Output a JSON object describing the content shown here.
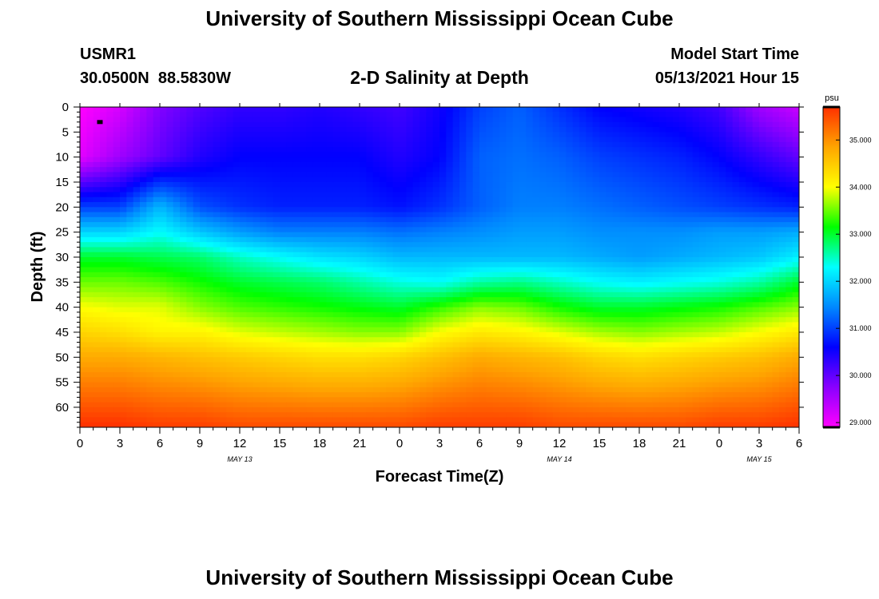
{
  "page": {
    "title_top": "University of Southern Mississippi Ocean Cube",
    "title_bottom": "University of Southern Mississippi Ocean Cube",
    "station_id": "USMR1",
    "station_coords": "30.0500N  88.5830W",
    "plot_title": "2-D Salinity at Depth",
    "model_start_label": "Model Start Time",
    "model_start_value": "05/13/2021 Hour 15"
  },
  "chart_data": {
    "type": "heatmap",
    "title": "2-D Salinity at Depth",
    "xlabel": "Forecast Time(Z)",
    "ylabel": "Depth (ft)",
    "x_tick_labels": [
      "0",
      "3",
      "6",
      "9",
      "12",
      "15",
      "18",
      "21",
      "0",
      "3",
      "6",
      "9",
      "12",
      "15",
      "18",
      "21",
      "0",
      "3",
      "6"
    ],
    "x_date_labels": [
      {
        "label": "MAY 13",
        "index": 4
      },
      {
        "label": "MAY 14",
        "index": 12
      },
      {
        "label": "MAY 15",
        "index": 17
      }
    ],
    "x_range_hours": [
      0,
      54
    ],
    "y_tick_values": [
      0,
      5,
      10,
      15,
      20,
      25,
      30,
      35,
      40,
      45,
      50,
      55,
      60
    ],
    "y_range": [
      0,
      64
    ],
    "y_reversed": true,
    "colorbar": {
      "unit": "psu",
      "min": 28.9,
      "max": 35.7,
      "tick_values": [
        29.0,
        30.0,
        31.0,
        32.0,
        33.0,
        34.0,
        35.0
      ],
      "tick_labels": [
        "29.000",
        "30.000",
        "31.000",
        "32.000",
        "33.000",
        "34.000",
        "35.000"
      ],
      "colors": [
        "#ff00ff",
        "#8a00ff",
        "#0000ff",
        "#0088ff",
        "#00ffff",
        "#00ff00",
        "#ffff00",
        "#ffa500",
        "#ff3000"
      ]
    },
    "grid_hours": [
      0,
      3,
      6,
      9,
      12,
      15,
      18,
      21,
      24,
      27,
      30,
      33,
      36,
      39,
      42,
      45,
      48,
      51,
      54
    ],
    "grid_depths": [
      0,
      10,
      20,
      25,
      30,
      35,
      40,
      45,
      50,
      64
    ],
    "salinity": [
      [
        28.9,
        29.2,
        29.8,
        30.1,
        30.3,
        30.3,
        30.4,
        30.3,
        30.2,
        30.5,
        31.0,
        31.2,
        30.9,
        30.6,
        30.5,
        30.4,
        30.2,
        29.6,
        29.3
      ],
      [
        29.1,
        29.6,
        30.0,
        30.4,
        30.6,
        30.6,
        30.6,
        30.6,
        30.4,
        30.6,
        31.2,
        31.3,
        31.2,
        31.0,
        30.9,
        30.8,
        30.6,
        30.3,
        30.0
      ],
      [
        31.0,
        31.0,
        31.8,
        31.1,
        30.9,
        30.8,
        30.8,
        30.8,
        30.7,
        30.9,
        31.2,
        31.4,
        31.4,
        31.3,
        31.2,
        31.1,
        31.0,
        30.9,
        30.8
      ],
      [
        32.0,
        32.0,
        32.3,
        31.9,
        31.6,
        31.4,
        31.4,
        31.4,
        31.3,
        31.4,
        31.5,
        31.6,
        31.6,
        31.5,
        31.5,
        31.5,
        31.6,
        31.6,
        31.7
      ],
      [
        33.0,
        33.0,
        32.9,
        32.8,
        32.5,
        32.3,
        32.1,
        32.0,
        31.8,
        31.8,
        31.8,
        31.8,
        31.8,
        31.7,
        31.6,
        31.7,
        31.8,
        31.9,
        32.2
      ],
      [
        33.5,
        33.5,
        33.4,
        33.2,
        33.0,
        32.9,
        32.8,
        32.6,
        32.4,
        32.3,
        32.6,
        32.7,
        32.5,
        32.3,
        32.2,
        32.3,
        32.4,
        32.6,
        33.0
      ],
      [
        34.0,
        33.9,
        33.9,
        33.6,
        33.4,
        33.3,
        33.2,
        33.1,
        33.0,
        33.3,
        33.6,
        33.5,
        33.2,
        33.0,
        33.0,
        33.1,
        33.2,
        33.4,
        33.6
      ],
      [
        34.4,
        34.3,
        34.1,
        34.1,
        33.9,
        33.8,
        33.7,
        33.6,
        33.6,
        34.0,
        34.2,
        34.1,
        33.9,
        33.7,
        33.6,
        33.7,
        33.8,
        34.0,
        34.2
      ],
      [
        34.8,
        34.8,
        34.7,
        34.6,
        34.5,
        34.4,
        34.3,
        34.3,
        34.4,
        34.6,
        34.8,
        34.7,
        34.6,
        34.4,
        34.3,
        34.4,
        34.5,
        34.6,
        34.8
      ],
      [
        35.7,
        35.7,
        35.6,
        35.6,
        35.5,
        35.5,
        35.5,
        35.5,
        35.5,
        35.6,
        35.6,
        35.6,
        35.5,
        35.5,
        35.5,
        35.5,
        35.6,
        35.6,
        35.7
      ]
    ],
    "marker": {
      "hour": 1.5,
      "depth": 3
    }
  }
}
